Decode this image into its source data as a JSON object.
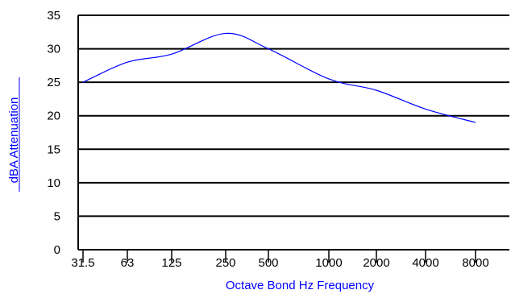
{
  "chart_data": {
    "type": "line",
    "title": "",
    "xlabel": "Octave Bond Hz Frequency",
    "ylabel": "dBA Attenuation",
    "ylim": [
      0,
      35
    ],
    "yticks": [
      "0",
      "5",
      "10",
      "15",
      "20",
      "25",
      "30",
      "35"
    ],
    "grid": "horizontal",
    "categories": [
      "31.5",
      "63",
      "125",
      "250",
      "500",
      "1000",
      "2000",
      "4000",
      "8000"
    ],
    "series": [
      {
        "color": "#0000ff",
        "x": [
          "31.5",
          "63",
          "125",
          "250",
          "500",
          "1000",
          "2000",
          "4000",
          "8000"
        ],
        "y": [
          25,
          28,
          29.2,
          32.3,
          30,
          25.5,
          23.8,
          21,
          19
        ]
      }
    ],
    "colors": {
      "line": "#0000ff",
      "axis": "#000000",
      "grid": "#000000",
      "axis_title": "#0000ff"
    }
  }
}
